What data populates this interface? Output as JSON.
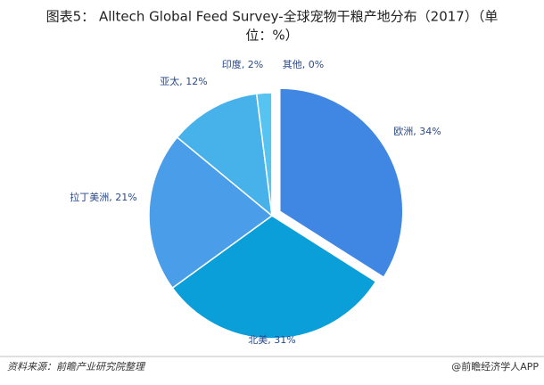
{
  "chart_data": {
    "type": "pie",
    "title_lines": [
      "图表5：  Alltech Global Feed Survey-全球宠物干粮产地分布（2017）（单",
      "位：%）"
    ],
    "values": [
      34,
      31,
      21,
      12,
      2,
      0
    ],
    "value_labels": [
      "欧洲, 34%",
      "北美, 31%",
      "拉丁美洲, 21%",
      "亚太, 12%",
      "印度, 2%",
      "其他, 0%"
    ],
    "colors": [
      "#3f87e2",
      "#0b9fd9",
      "#4a9ee9",
      "#47b1ea",
      "#56c3f1",
      "#7fd3f5"
    ],
    "exploded": [
      true,
      false,
      false,
      false,
      false,
      false
    ],
    "source": "资料来源：前瞻产业研究院整理",
    "footer": "@前瞻经济学人APP"
  }
}
